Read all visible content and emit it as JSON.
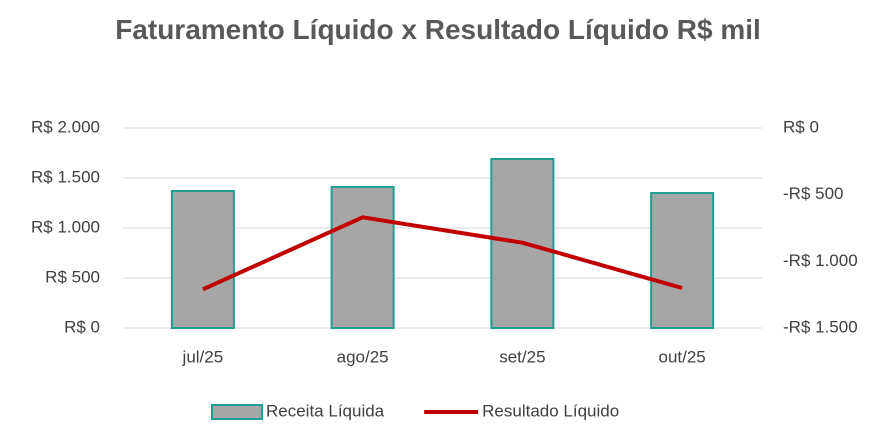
{
  "chart_data": {
    "type": "bar-line",
    "title": "Faturamento Líquido x Resultado Líquido R$ mil",
    "categories": [
      "jul/25",
      "ago/25",
      "set/25",
      "out/25"
    ],
    "series": [
      {
        "name": "Receita Líquida",
        "type": "bar",
        "color": "#a6a6a6",
        "edge_color": "#1f9e8f",
        "values": [
          1370,
          1410,
          1690,
          1350
        ]
      },
      {
        "name": "Resultado Líquido",
        "type": "line",
        "axis": "y2",
        "color": "#c00000",
        "values": [
          -1210,
          -670,
          -860,
          -1200
        ]
      }
    ],
    "ylim": [
      0,
      2000
    ],
    "yticks": [
      {
        "value": 0,
        "label": "R$ 0"
      },
      {
        "value": 500,
        "label": "R$ 500"
      },
      {
        "value": 1000,
        "label": "R$ 1.000"
      },
      {
        "value": 1500,
        "label": "R$ 1.500"
      },
      {
        "value": 2000,
        "label": "R$ 2.000"
      }
    ],
    "y2lim": [
      -1500,
      0
    ],
    "y2ticks": [
      {
        "value": 0,
        "label": "R$ 0"
      },
      {
        "value": -500,
        "label": "-R$ 500"
      },
      {
        "value": -1000,
        "label": "-R$ 1.000"
      },
      {
        "value": -1500,
        "label": "-R$ 1.500"
      }
    ],
    "grid": true,
    "legend": "bottom"
  }
}
